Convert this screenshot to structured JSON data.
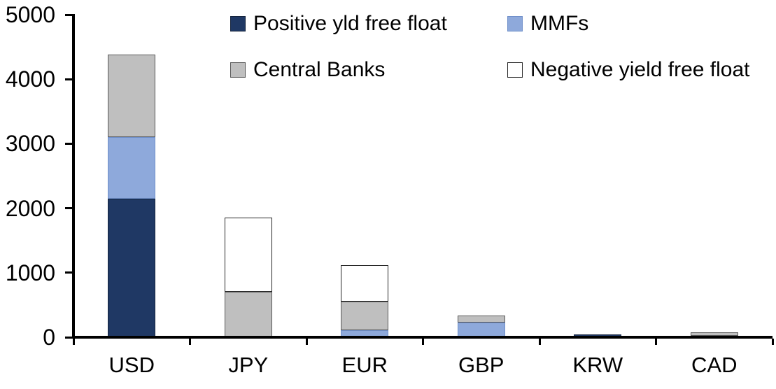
{
  "chart_data": {
    "type": "bar",
    "stacked": true,
    "title": "",
    "xlabel": "",
    "ylabel": "",
    "categories": [
      "USD",
      "JPY",
      "EUR",
      "GBP",
      "KRW",
      "CAD"
    ],
    "series": [
      {
        "name": "Positive yld free float",
        "fill": "#1F3864",
        "border": "#14233D",
        "values": [
          2150,
          0,
          0,
          0,
          45,
          25
        ]
      },
      {
        "name": "MMFs",
        "fill": "#8EA9DB",
        "border": "#6F8FC9",
        "values": [
          950,
          0,
          110,
          230,
          0,
          0
        ]
      },
      {
        "name": "Central Banks",
        "fill": "#BFBFBF",
        "border": "#595959",
        "values": [
          1280,
          710,
          440,
          110,
          0,
          50
        ]
      },
      {
        "name": "Negative yield free float",
        "fill": "#FFFFFF",
        "border": "#262626",
        "values": [
          0,
          1140,
          570,
          0,
          0,
          0
        ]
      }
    ],
    "ylim": [
      0,
      5000
    ],
    "yticks": [
      0,
      1000,
      2000,
      3000,
      4000,
      5000
    ],
    "grid": false,
    "legend_position": "top-inside",
    "axis_color": "#000000",
    "text_color": "#000000",
    "background": "#FFFFFF"
  }
}
